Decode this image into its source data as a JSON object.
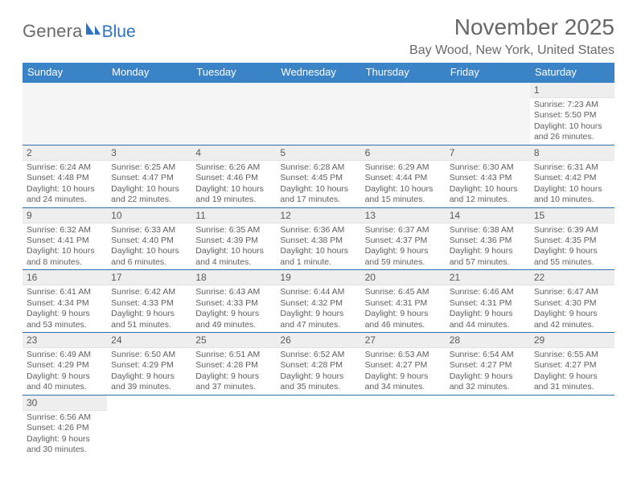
{
  "logo": {
    "general": "Genera",
    "blue": "Blue"
  },
  "monthTitle": "November 2025",
  "location": "Bay Wood, New York, United States",
  "dayHeaders": [
    "Sunday",
    "Monday",
    "Tuesday",
    "Wednesday",
    "Thursday",
    "Friday",
    "Saturday"
  ],
  "colors": {
    "headerBg": "#3a83c6",
    "headerText": "#ffffff",
    "dayBarBg": "#eeeeee",
    "textGray": "#5e5f62",
    "ruleBlue": "#2f6fae"
  },
  "weeks": [
    [
      {
        "blank": true
      },
      {
        "blank": true
      },
      {
        "blank": true
      },
      {
        "blank": true
      },
      {
        "blank": true
      },
      {
        "blank": true
      },
      {
        "n": "1",
        "sr": "Sunrise: 7:23 AM",
        "ss": "Sunset: 5:50 PM",
        "dl1": "Daylight: 10 hours",
        "dl2": "and 26 minutes."
      }
    ],
    [
      {
        "n": "2",
        "sr": "Sunrise: 6:24 AM",
        "ss": "Sunset: 4:48 PM",
        "dl1": "Daylight: 10 hours",
        "dl2": "and 24 minutes."
      },
      {
        "n": "3",
        "sr": "Sunrise: 6:25 AM",
        "ss": "Sunset: 4:47 PM",
        "dl1": "Daylight: 10 hours",
        "dl2": "and 22 minutes."
      },
      {
        "n": "4",
        "sr": "Sunrise: 6:26 AM",
        "ss": "Sunset: 4:46 PM",
        "dl1": "Daylight: 10 hours",
        "dl2": "and 19 minutes."
      },
      {
        "n": "5",
        "sr": "Sunrise: 6:28 AM",
        "ss": "Sunset: 4:45 PM",
        "dl1": "Daylight: 10 hours",
        "dl2": "and 17 minutes."
      },
      {
        "n": "6",
        "sr": "Sunrise: 6:29 AM",
        "ss": "Sunset: 4:44 PM",
        "dl1": "Daylight: 10 hours",
        "dl2": "and 15 minutes."
      },
      {
        "n": "7",
        "sr": "Sunrise: 6:30 AM",
        "ss": "Sunset: 4:43 PM",
        "dl1": "Daylight: 10 hours",
        "dl2": "and 12 minutes."
      },
      {
        "n": "8",
        "sr": "Sunrise: 6:31 AM",
        "ss": "Sunset: 4:42 PM",
        "dl1": "Daylight: 10 hours",
        "dl2": "and 10 minutes."
      }
    ],
    [
      {
        "n": "9",
        "sr": "Sunrise: 6:32 AM",
        "ss": "Sunset: 4:41 PM",
        "dl1": "Daylight: 10 hours",
        "dl2": "and 8 minutes."
      },
      {
        "n": "10",
        "sr": "Sunrise: 6:33 AM",
        "ss": "Sunset: 4:40 PM",
        "dl1": "Daylight: 10 hours",
        "dl2": "and 6 minutes."
      },
      {
        "n": "11",
        "sr": "Sunrise: 6:35 AM",
        "ss": "Sunset: 4:39 PM",
        "dl1": "Daylight: 10 hours",
        "dl2": "and 4 minutes."
      },
      {
        "n": "12",
        "sr": "Sunrise: 6:36 AM",
        "ss": "Sunset: 4:38 PM",
        "dl1": "Daylight: 10 hours",
        "dl2": "and 1 minute."
      },
      {
        "n": "13",
        "sr": "Sunrise: 6:37 AM",
        "ss": "Sunset: 4:37 PM",
        "dl1": "Daylight: 9 hours",
        "dl2": "and 59 minutes."
      },
      {
        "n": "14",
        "sr": "Sunrise: 6:38 AM",
        "ss": "Sunset: 4:36 PM",
        "dl1": "Daylight: 9 hours",
        "dl2": "and 57 minutes."
      },
      {
        "n": "15",
        "sr": "Sunrise: 6:39 AM",
        "ss": "Sunset: 4:35 PM",
        "dl1": "Daylight: 9 hours",
        "dl2": "and 55 minutes."
      }
    ],
    [
      {
        "n": "16",
        "sr": "Sunrise: 6:41 AM",
        "ss": "Sunset: 4:34 PM",
        "dl1": "Daylight: 9 hours",
        "dl2": "and 53 minutes."
      },
      {
        "n": "17",
        "sr": "Sunrise: 6:42 AM",
        "ss": "Sunset: 4:33 PM",
        "dl1": "Daylight: 9 hours",
        "dl2": "and 51 minutes."
      },
      {
        "n": "18",
        "sr": "Sunrise: 6:43 AM",
        "ss": "Sunset: 4:33 PM",
        "dl1": "Daylight: 9 hours",
        "dl2": "and 49 minutes."
      },
      {
        "n": "19",
        "sr": "Sunrise: 6:44 AM",
        "ss": "Sunset: 4:32 PM",
        "dl1": "Daylight: 9 hours",
        "dl2": "and 47 minutes."
      },
      {
        "n": "20",
        "sr": "Sunrise: 6:45 AM",
        "ss": "Sunset: 4:31 PM",
        "dl1": "Daylight: 9 hours",
        "dl2": "and 46 minutes."
      },
      {
        "n": "21",
        "sr": "Sunrise: 6:46 AM",
        "ss": "Sunset: 4:31 PM",
        "dl1": "Daylight: 9 hours",
        "dl2": "and 44 minutes."
      },
      {
        "n": "22",
        "sr": "Sunrise: 6:47 AM",
        "ss": "Sunset: 4:30 PM",
        "dl1": "Daylight: 9 hours",
        "dl2": "and 42 minutes."
      }
    ],
    [
      {
        "n": "23",
        "sr": "Sunrise: 6:49 AM",
        "ss": "Sunset: 4:29 PM",
        "dl1": "Daylight: 9 hours",
        "dl2": "and 40 minutes."
      },
      {
        "n": "24",
        "sr": "Sunrise: 6:50 AM",
        "ss": "Sunset: 4:29 PM",
        "dl1": "Daylight: 9 hours",
        "dl2": "and 39 minutes."
      },
      {
        "n": "25",
        "sr": "Sunrise: 6:51 AM",
        "ss": "Sunset: 4:28 PM",
        "dl1": "Daylight: 9 hours",
        "dl2": "and 37 minutes."
      },
      {
        "n": "26",
        "sr": "Sunrise: 6:52 AM",
        "ss": "Sunset: 4:28 PM",
        "dl1": "Daylight: 9 hours",
        "dl2": "and 35 minutes."
      },
      {
        "n": "27",
        "sr": "Sunrise: 6:53 AM",
        "ss": "Sunset: 4:27 PM",
        "dl1": "Daylight: 9 hours",
        "dl2": "and 34 minutes."
      },
      {
        "n": "28",
        "sr": "Sunrise: 6:54 AM",
        "ss": "Sunset: 4:27 PM",
        "dl1": "Daylight: 9 hours",
        "dl2": "and 32 minutes."
      },
      {
        "n": "29",
        "sr": "Sunrise: 6:55 AM",
        "ss": "Sunset: 4:27 PM",
        "dl1": "Daylight: 9 hours",
        "dl2": "and 31 minutes."
      }
    ],
    [
      {
        "n": "30",
        "sr": "Sunrise: 6:56 AM",
        "ss": "Sunset: 4:26 PM",
        "dl1": "Daylight: 9 hours",
        "dl2": "and 30 minutes."
      },
      {
        "blank": true
      },
      {
        "blank": true
      },
      {
        "blank": true
      },
      {
        "blank": true
      },
      {
        "blank": true
      },
      {
        "blank": true
      }
    ]
  ]
}
